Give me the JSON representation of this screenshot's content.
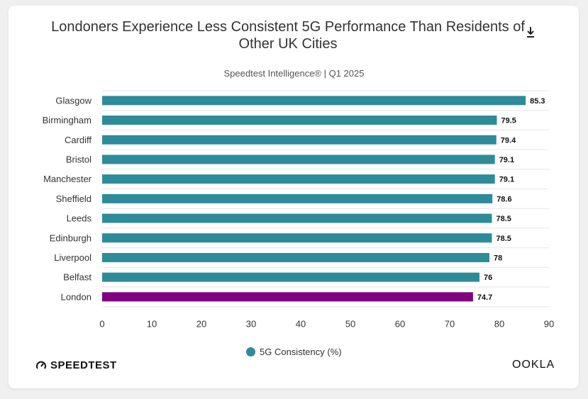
{
  "header": {
    "title": "Londoners Experience Less Consistent 5G Performance Than Residents of Other UK Cities",
    "subtitle": "Speedtest Intelligence® | Q1 2025",
    "download_icon": "download-icon"
  },
  "colors": {
    "bar": "#2e8b9a",
    "highlight": "#800080",
    "grid": "#e6e6e6",
    "axis_text": "#333333"
  },
  "chart_data": {
    "type": "bar",
    "orientation": "horizontal",
    "title": "Londoners Experience Less Consistent 5G Performance Than Residents of Other UK Cities",
    "subtitle": "Speedtest Intelligence® | Q1 2025",
    "categories": [
      "Glasgow",
      "Birmingham",
      "Cardiff",
      "Bristol",
      "Manchester",
      "Sheffield",
      "Leeds",
      "Edinburgh",
      "Liverpool",
      "Belfast",
      "London"
    ],
    "values": [
      85.3,
      79.5,
      79.4,
      79.1,
      79.1,
      78.6,
      78.5,
      78.5,
      78,
      76,
      74.7
    ],
    "data_labels": [
      "85.3",
      "79.5",
      "79.4",
      "79.1",
      "79.1",
      "78.6",
      "78.5",
      "78.5",
      "78",
      "76",
      "74.7"
    ],
    "highlight_category": "London",
    "xlim": [
      0,
      90
    ],
    "xticks": [
      "0",
      "10",
      "20",
      "30",
      "40",
      "50",
      "60",
      "70",
      "80",
      "90"
    ],
    "xlabel": "",
    "ylabel": "",
    "legend": {
      "label": "5G Consistency (%)",
      "placement": "bottom-center"
    },
    "grid": true
  },
  "footer": {
    "left_logo": "SPEEDTEST",
    "right_logo": "OOKLA"
  }
}
